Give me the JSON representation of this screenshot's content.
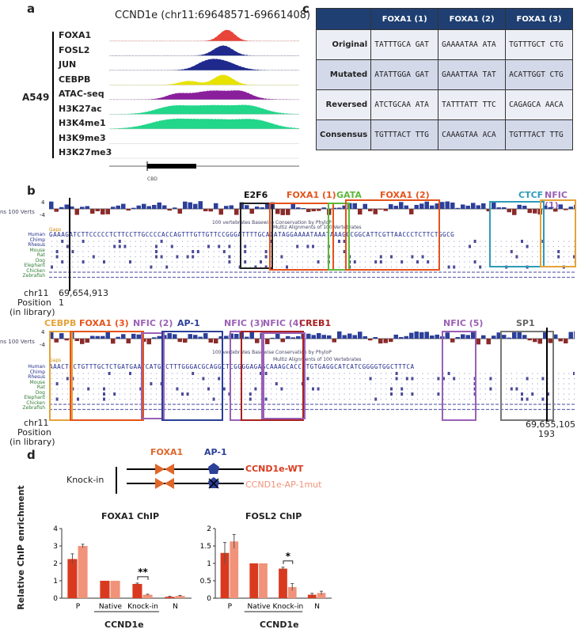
{
  "panels": {
    "a": "a",
    "b": "b",
    "c": "c",
    "d": "d"
  },
  "panel_a": {
    "title": "CCND1e (chr11:69648571-69661408)",
    "cell_line": "A549",
    "tracks": [
      {
        "label": "FOXA1",
        "color": "#e8443a"
      },
      {
        "label": "FOSL2",
        "color": "#1f2a8c"
      },
      {
        "label": "JUN",
        "color": "#1f2a8c"
      },
      {
        "label": "CEBPB",
        "color": "#e7e200"
      },
      {
        "label": "ATAC-seq",
        "color": "#8a1f9c"
      },
      {
        "label": "H3K27ac",
        "color": "#22d68a"
      },
      {
        "label": "H3K4me1",
        "color": "#22d68a"
      },
      {
        "label": "H3K9me3",
        "color": "#22d68a"
      },
      {
        "label": "H3K27me3",
        "color": "#22d68a"
      }
    ],
    "gene_label": "CBD"
  },
  "panel_c": {
    "headers": [
      "",
      "FOXA1 (1)",
      "FOXA1 (2)",
      "FOXA1 (3)"
    ],
    "rows": [
      {
        "name": "Original",
        "cells": [
          "TATTTGCA GAT",
          "GAAAATAA ATA",
          "TGTTTGCT CTG"
        ]
      },
      {
        "name": "Mutated",
        "cells": [
          "ATATTGGA GAT",
          "GAAATTAA TAT",
          "ACATTGGT CTG"
        ]
      },
      {
        "name": "Reversed",
        "cells": [
          "ATCTGCAA ATA",
          "TATTTATT TTC",
          "CAGAGCA AACA"
        ]
      },
      {
        "name": "Consensus",
        "cells": [
          "TGTTTACT TTG",
          "CAAAGTAA ACA",
          "TGTTTACT TTG"
        ]
      }
    ]
  },
  "panel_b": {
    "row1": {
      "tfs": [
        "E2F6",
        "FOXA1 (1)",
        "GATA",
        "FOXA1 (2)",
        "CTCF",
        "NFIC (1)"
      ],
      "track_title": "100 vertebrates Basewise Conservation by PhyloP",
      "multiz": "Multiz Alignments of 100 Vertebrates",
      "cons_label": "ns 100 Verts",
      "gaps": "Gaps",
      "human_seq": "GAAAGATCTTCCCCCTCTTCCTTGCCCCACCAGTTTGTTGTTCCGGGATTTTGCAGATAGGAAAATAAATAAAGCCGGCATTCGTTAACCCTCTTCTGGCG",
      "chr": "chr11",
      "position_label": "Position",
      "library_label": "(in library)",
      "position": "69,654,913",
      "library_pos": "1",
      "y4": "4",
      "yn4": "-4"
    },
    "row2": {
      "tfs": [
        "CEBPB",
        "FOXA1 (3)",
        "NFIC (2)",
        "AP-1",
        "NFIC (3)",
        "NFIC (4)",
        "CREB1",
        "NFIC (5)",
        "SP1"
      ],
      "track_title": "100 vertebrates Basewise Conservation by PhyloP",
      "multiz": "Multiz Alignments of 100 Vertebrates",
      "cons_label": "ns 100 Verts",
      "gaps": "Gaps",
      "human_seq": "AAACTGCTGTTTGCTCTGATGAATCATGTCTTTGGGACGCAGGCTCGGGGAGAGCAAAGCACCGTGTGAGGCATCATCGGGGTGGCTTTCA",
      "chr": "chr11",
      "position_label": "Position",
      "library_label": "(in library)",
      "position": "69,655,105",
      "library_pos": "193",
      "y4": "4",
      "yn4": "-4"
    },
    "species": [
      "Human",
      "Chimp",
      "Rhesus",
      "Mouse",
      "Rat",
      "Dog",
      "Elephant",
      "Chicken",
      "Zebrafish"
    ]
  },
  "panel_d": {
    "diagram": {
      "foxa1_label": "FOXA1",
      "ap1_label": "AP-1",
      "knockin_label": "Knock-in",
      "wt_label": "CCND1e-WT",
      "mut_label": "CCND1e-AP-1mut"
    },
    "ylabel": "Relative ChIP enrichment",
    "wt_color": "#d93a1f",
    "mut_color": "#f0937a"
  },
  "chart_data": [
    {
      "type": "bar",
      "title": "FOXA1 ChIP",
      "ylabel": "Relative ChIP enrichment",
      "xlabel": "CCND1e",
      "categories": [
        "P",
        "Native",
        "Knock-in",
        "N"
      ],
      "ylim": [
        0,
        4
      ],
      "yticks": [
        "0",
        "1",
        "2",
        "3",
        "4"
      ],
      "series": [
        {
          "name": "CCND1e-WT",
          "values": [
            2.25,
            1.0,
            0.82,
            0.08
          ],
          "errors": [
            0.3,
            0.0,
            0.05,
            0.03
          ]
        },
        {
          "name": "CCND1e-AP-1mut",
          "values": [
            3.0,
            1.0,
            0.2,
            0.13
          ],
          "errors": [
            0.1,
            0.0,
            0.03,
            0.03
          ]
        }
      ],
      "significance": {
        "category": "Knock-in",
        "label": "**"
      }
    },
    {
      "type": "bar",
      "title": "FOSL2 ChIP",
      "ylabel": "",
      "xlabel": "CCND1e",
      "categories": [
        "P",
        "Native",
        "Knock-in",
        "N"
      ],
      "ylim": [
        0,
        2
      ],
      "yticks": [
        "0",
        "0.5",
        "1",
        "1.5",
        "2"
      ],
      "series": [
        {
          "name": "CCND1e-WT",
          "values": [
            1.3,
            1.0,
            0.85,
            0.1
          ],
          "errors": [
            0.3,
            0.0,
            0.04,
            0.04
          ]
        },
        {
          "name": "CCND1e-AP-1mut",
          "values": [
            1.63,
            1.0,
            0.32,
            0.15
          ],
          "errors": [
            0.2,
            0.0,
            0.1,
            0.05
          ]
        }
      ],
      "significance": {
        "category": "Knock-in",
        "label": "*"
      }
    }
  ]
}
